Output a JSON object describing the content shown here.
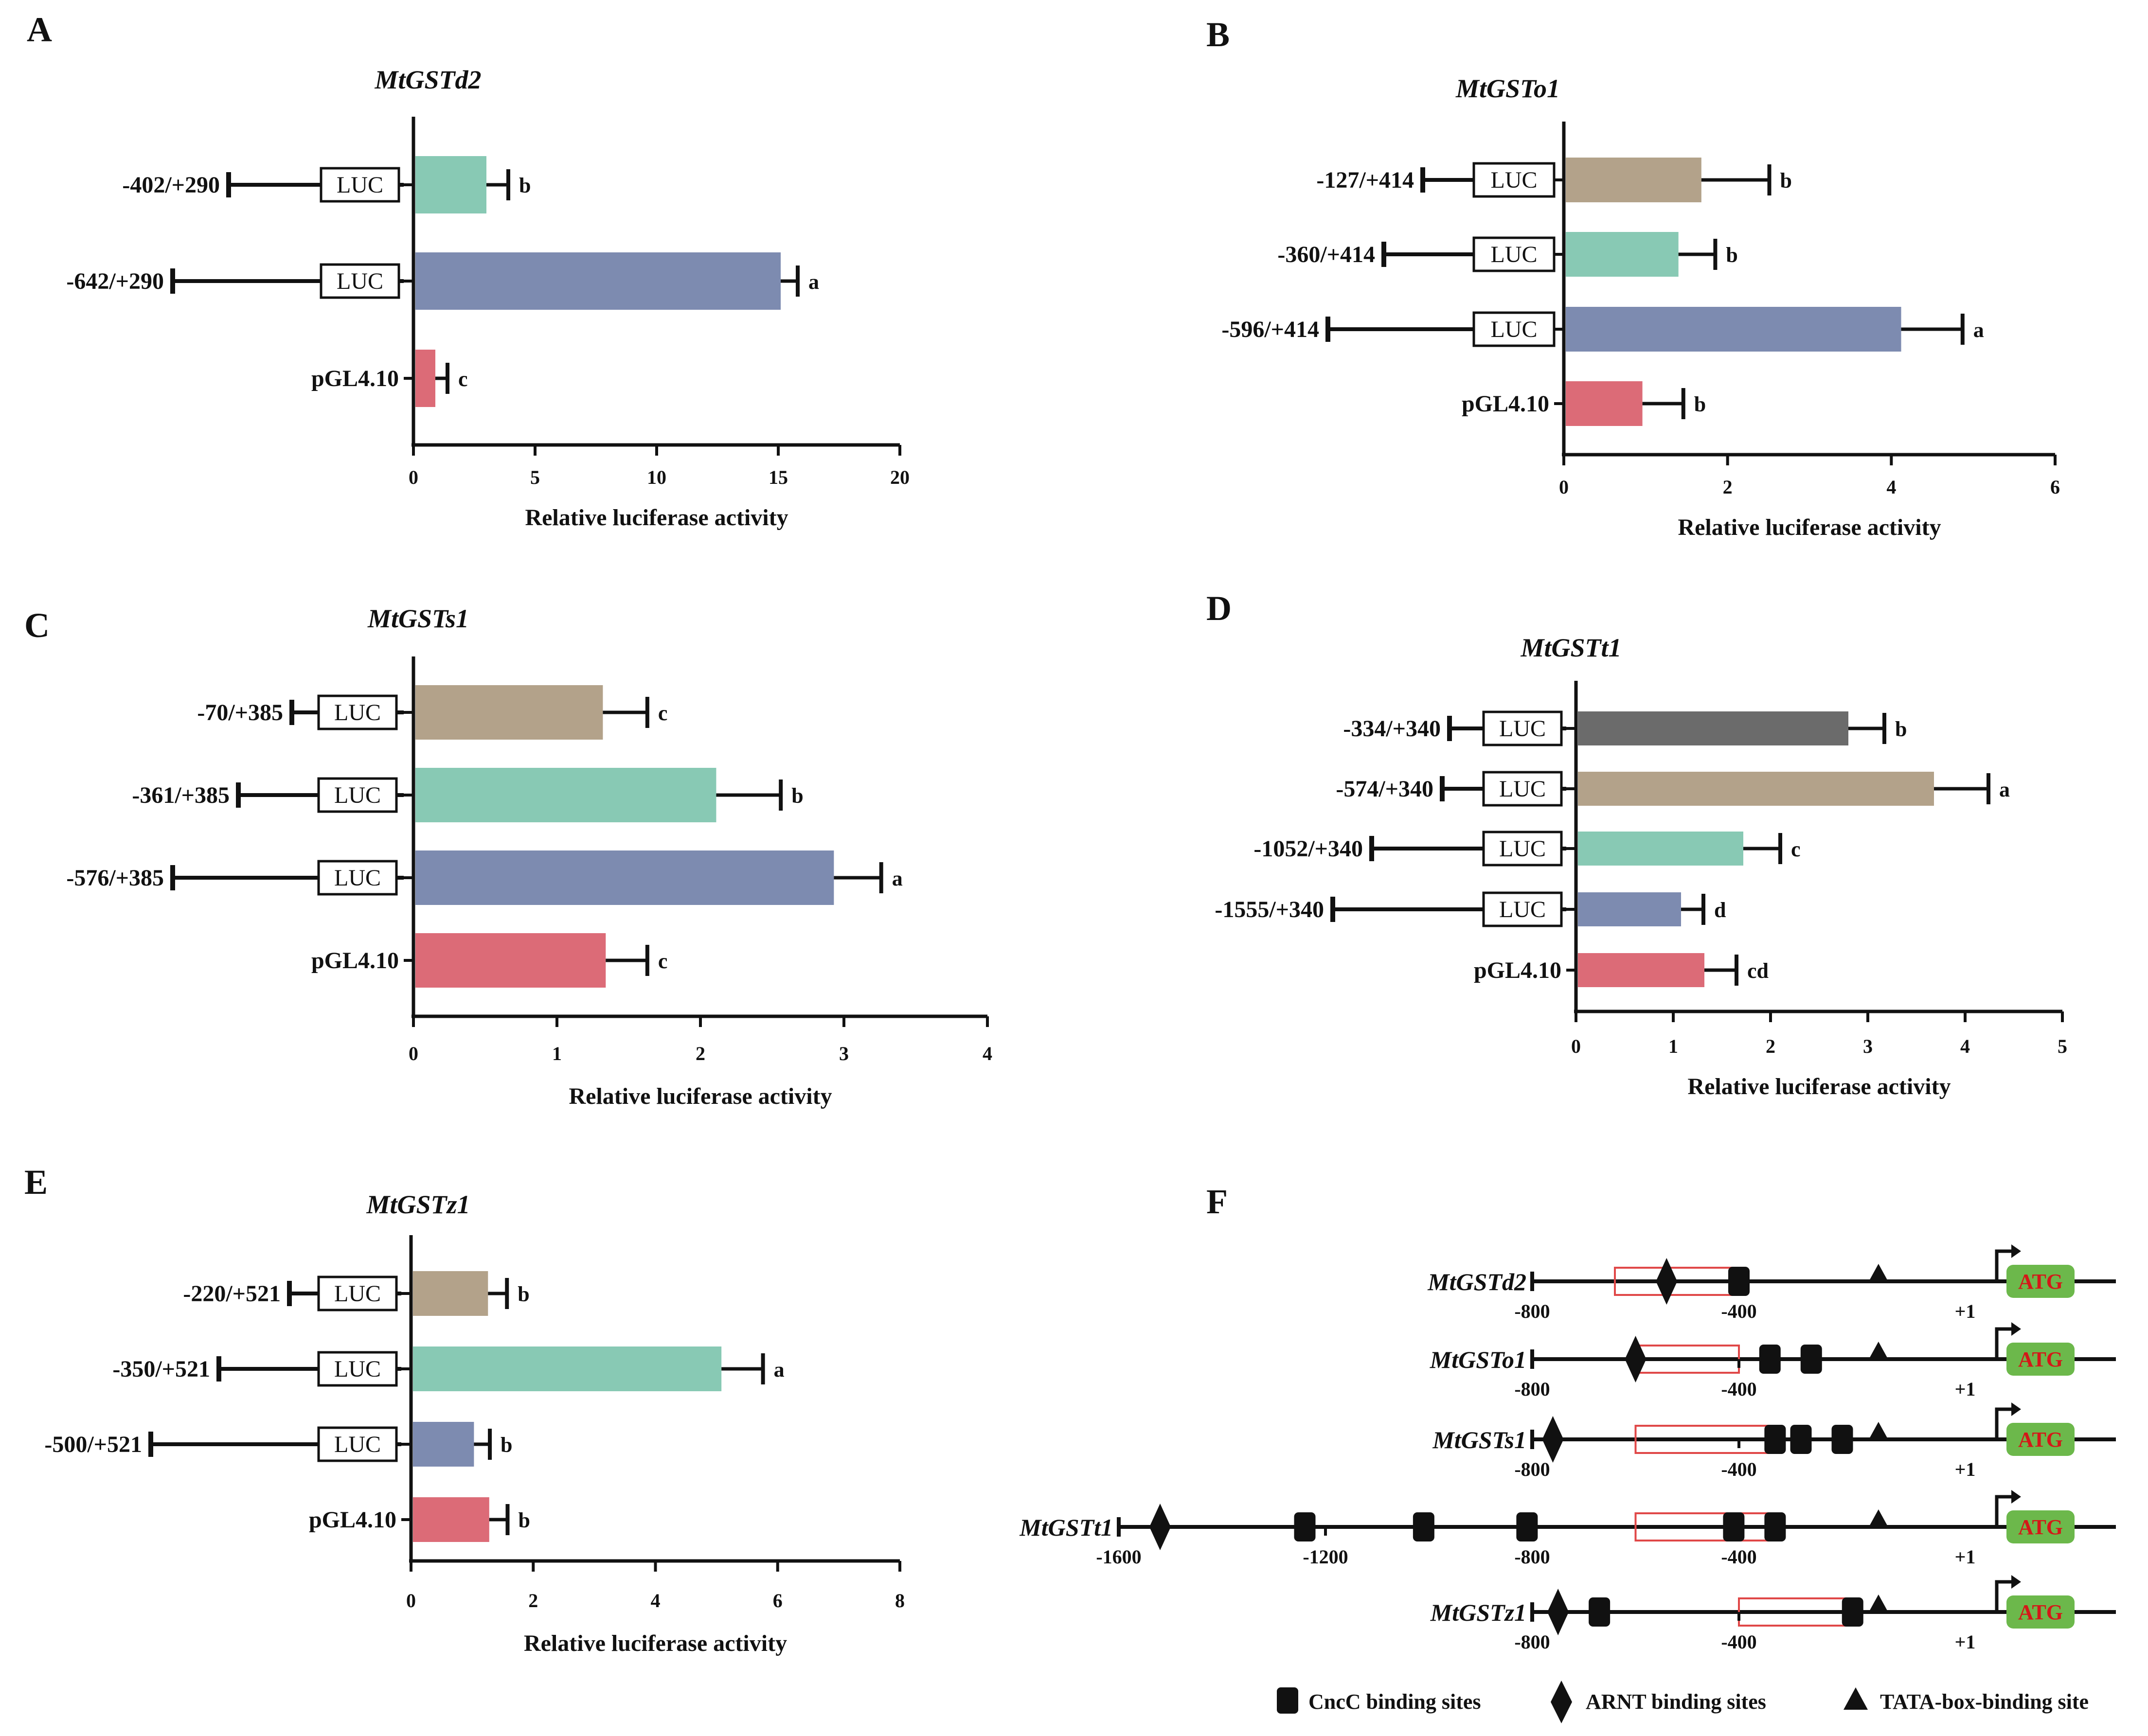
{
  "chart_data": [
    {
      "panel": "A",
      "type": "bar",
      "orientation": "horizontal",
      "title": "MtGSTd2",
      "xlabel": "Relative luciferase activity",
      "xlim": [
        0,
        20
      ],
      "xticks": [
        0,
        5,
        10,
        15,
        20
      ],
      "categories": [
        "-402/+290",
        "-642/+290",
        "pGL4.10"
      ],
      "construct_start": [
        -402,
        -642,
        null
      ],
      "values": [
        3.0,
        15.1,
        0.9
      ],
      "errors": [
        0.9,
        0.7,
        0.5
      ],
      "significance": [
        "b",
        "a",
        "c"
      ],
      "colors": [
        "#88c9b4",
        "#7d8bb0",
        "#dc6b77"
      ]
    },
    {
      "panel": "B",
      "type": "bar",
      "orientation": "horizontal",
      "title": "MtGSTo1",
      "xlabel": "Relative luciferase activity",
      "xlim": [
        0,
        6
      ],
      "xticks": [
        0,
        2,
        4,
        6
      ],
      "categories": [
        "-127/+414",
        "-360/+414",
        "-596/+414",
        "pGL4.10"
      ],
      "construct_start": [
        -127,
        -360,
        -596,
        null
      ],
      "values": [
        1.68,
        1.4,
        4.12,
        0.96
      ],
      "errors": [
        0.83,
        0.45,
        0.75,
        0.5
      ],
      "significance": [
        "b",
        "b",
        "a",
        "b"
      ],
      "colors": [
        "#b3a28a",
        "#88c9b4",
        "#7d8bb0",
        "#dc6b77"
      ]
    },
    {
      "panel": "C",
      "type": "bar",
      "orientation": "horizontal",
      "title": "MtGSTs1",
      "xlabel": "Relative luciferase activity",
      "xlim": [
        0,
        4
      ],
      "xticks": [
        0,
        1,
        2,
        3,
        4
      ],
      "categories": [
        "-70/+385",
        "-361/+385",
        "-576/+385",
        "pGL4.10"
      ],
      "construct_start": [
        -70,
        -361,
        -576,
        null
      ],
      "values": [
        1.32,
        2.11,
        2.93,
        1.34
      ],
      "errors": [
        0.31,
        0.45,
        0.33,
        0.29
      ],
      "significance": [
        "c",
        "b",
        "a",
        "c"
      ],
      "colors": [
        "#b3a28a",
        "#88c9b4",
        "#7d8bb0",
        "#dc6b77"
      ]
    },
    {
      "panel": "D",
      "type": "bar",
      "orientation": "horizontal",
      "title": "MtGSTt1",
      "xlabel": "Relative luciferase activity",
      "xlim": [
        0,
        5
      ],
      "xticks": [
        0,
        1,
        2,
        3,
        4,
        5
      ],
      "categories": [
        "-334/+340",
        "-574/+340",
        "-1052/+340",
        "-1555/+340",
        "pGL4.10"
      ],
      "construct_start": [
        -334,
        -574,
        -1052,
        -1555,
        null
      ],
      "values": [
        2.8,
        3.68,
        1.72,
        1.08,
        1.32
      ],
      "errors": [
        0.37,
        0.56,
        0.38,
        0.23,
        0.33
      ],
      "significance": [
        "b",
        "a",
        "c",
        "d",
        "cd"
      ],
      "colors": [
        "#6b6b6b",
        "#b3a28a",
        "#88c9b4",
        "#7d8bb0",
        "#dc6b77"
      ]
    },
    {
      "panel": "E",
      "type": "bar",
      "orientation": "horizontal",
      "title": "MtGSTz1",
      "xlabel": "Relative luciferase activity",
      "xlim": [
        0,
        8
      ],
      "xticks": [
        0,
        2,
        4,
        6,
        8
      ],
      "categories": [
        "-220/+521",
        "-350/+521",
        "-500/+521",
        "pGL4.10"
      ],
      "construct_start": [
        -220,
        -350,
        -500,
        null
      ],
      "values": [
        1.26,
        5.08,
        1.03,
        1.28
      ],
      "errors": [
        0.31,
        0.68,
        0.26,
        0.3
      ],
      "significance": [
        "b",
        "a",
        "b",
        "b"
      ],
      "colors": [
        "#b3a28a",
        "#88c9b4",
        "#7d8bb0",
        "#dc6b77"
      ]
    }
  ],
  "luc_label": "LUC",
  "promoter_map": {
    "panel": "F",
    "atg_label": "ATG",
    "plus_one_label": "+1",
    "genes": [
      {
        "name": "MtGSTd2",
        "start": -800,
        "ticks": [
          "-800",
          "-400"
        ],
        "box": [
          -640,
          -400
        ],
        "cncc": [
          -400
        ],
        "arnt": [
          -540
        ],
        "tata": [
          -130
        ]
      },
      {
        "name": "MtGSTo1",
        "start": -800,
        "ticks": [
          "-800",
          "-400"
        ],
        "box": [
          -600,
          -400
        ],
        "cncc": [
          -340,
          -260
        ],
        "arnt": [
          -600
        ],
        "tata": [
          -130
        ]
      },
      {
        "name": "MtGSTs1",
        "start": -800,
        "ticks": [
          "-800",
          "-400"
        ],
        "box": [
          -600,
          -330
        ],
        "cncc": [
          -330,
          -280,
          -200
        ],
        "arnt": [
          -760
        ],
        "tata": [
          -130
        ]
      },
      {
        "name": "MtGSTt1",
        "start": -1600,
        "ticks": [
          "-1600",
          "-1200",
          "-800",
          "-400"
        ],
        "box": [
          -600,
          -330
        ],
        "cncc": [
          -1240,
          -1010,
          -810,
          -410,
          -330
        ],
        "arnt": [
          -1520
        ],
        "tata": [
          -130
        ]
      },
      {
        "name": "MtGSTz1",
        "start": -800,
        "ticks": [
          "-800",
          "-400"
        ],
        "box": [
          -400,
          -180
        ],
        "cncc": [
          -670,
          -180
        ],
        "arnt": [
          -750
        ],
        "tata": [
          -130
        ]
      }
    ],
    "legend": {
      "cncc": "CncC binding sites",
      "arnt": "ARNT binding sites",
      "tata": "TATA-box-binding site"
    }
  }
}
